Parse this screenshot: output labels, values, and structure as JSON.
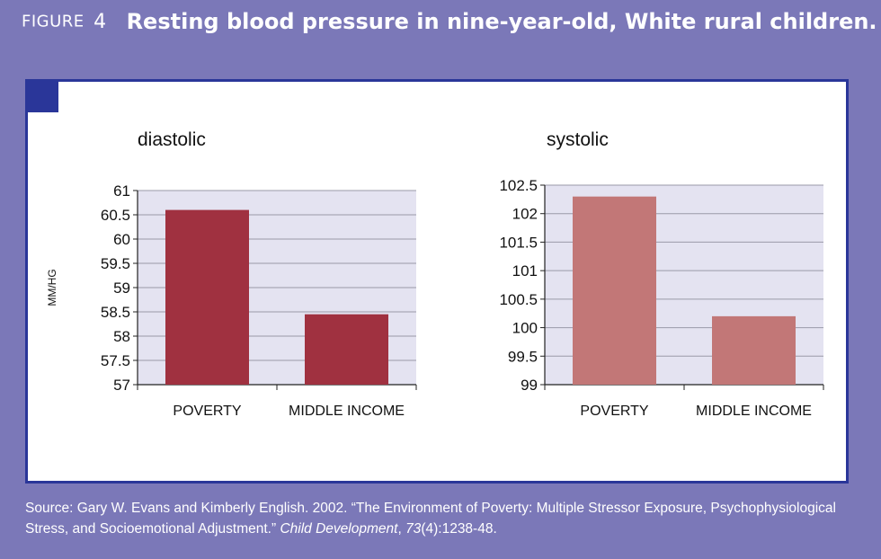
{
  "figure": {
    "label": "FIGURE",
    "number": "4",
    "title": "Resting blood pressure in nine-year-old, White rural children."
  },
  "source": {
    "prefix": "Source: Gary W. Evans and Kimberly English. 2002. “The Environment of Poverty: Multiple Stressor Exposure, Psychophysiological Stress, and Socioemotional Adjustment.”",
    "journal": "Child Development",
    "volume": "73",
    "issue": "(4)",
    "pages": ":1238-48."
  },
  "colors": {
    "background": "#7b78b8",
    "panel_border": "#2a3699",
    "plot_bg": "#e4e3f1",
    "diastolic_bar": "#a03140",
    "systolic_bar": "#c27777"
  },
  "chart_data": [
    {
      "type": "bar",
      "title": "diastolic",
      "ylabel": "MM/HG",
      "xlabel": "",
      "categories": [
        "POVERTY",
        "MIDDLE INCOME"
      ],
      "values": [
        60.6,
        58.45
      ],
      "ylim": [
        57,
        61
      ],
      "yticks": [
        57,
        57.5,
        58,
        58.5,
        59,
        59.5,
        60,
        60.5,
        61
      ],
      "ytick_labels": [
        "57",
        "57.5",
        "58",
        "58.5",
        "59",
        "59.5",
        "60",
        "60.5",
        "61"
      ],
      "grid": true,
      "color": "#a03140"
    },
    {
      "type": "bar",
      "title": "systolic",
      "ylabel": "",
      "xlabel": "",
      "categories": [
        "POVERTY",
        "MIDDLE INCOME"
      ],
      "values": [
        102.3,
        100.2
      ],
      "ylim": [
        99,
        102.5
      ],
      "yticks": [
        99,
        99.5,
        100,
        100.5,
        101,
        101.5,
        102,
        102.5
      ],
      "ytick_labels": [
        "99",
        "99.5",
        "100",
        "100.5",
        "101",
        "101.5",
        "102",
        "102.5"
      ],
      "grid": true,
      "color": "#c27777"
    }
  ]
}
